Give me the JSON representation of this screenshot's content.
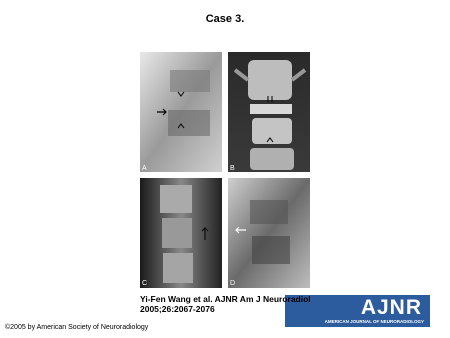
{
  "header": {
    "title": "Case 3."
  },
  "figure": {
    "panels": [
      {
        "label": "A"
      },
      {
        "label": "B"
      },
      {
        "label": "C"
      },
      {
        "label": "D"
      }
    ]
  },
  "citation": {
    "text": "Yi-Fen Wang et al. AJNR Am J Neuroradiol 2005;26:2067-2076"
  },
  "logo": {
    "name": "AJNR",
    "subtitle": "AMERICAN JOURNAL OF NEURORADIOLOGY"
  },
  "footer": {
    "copyright": "©2005 by American Society of Neuroradiology"
  }
}
